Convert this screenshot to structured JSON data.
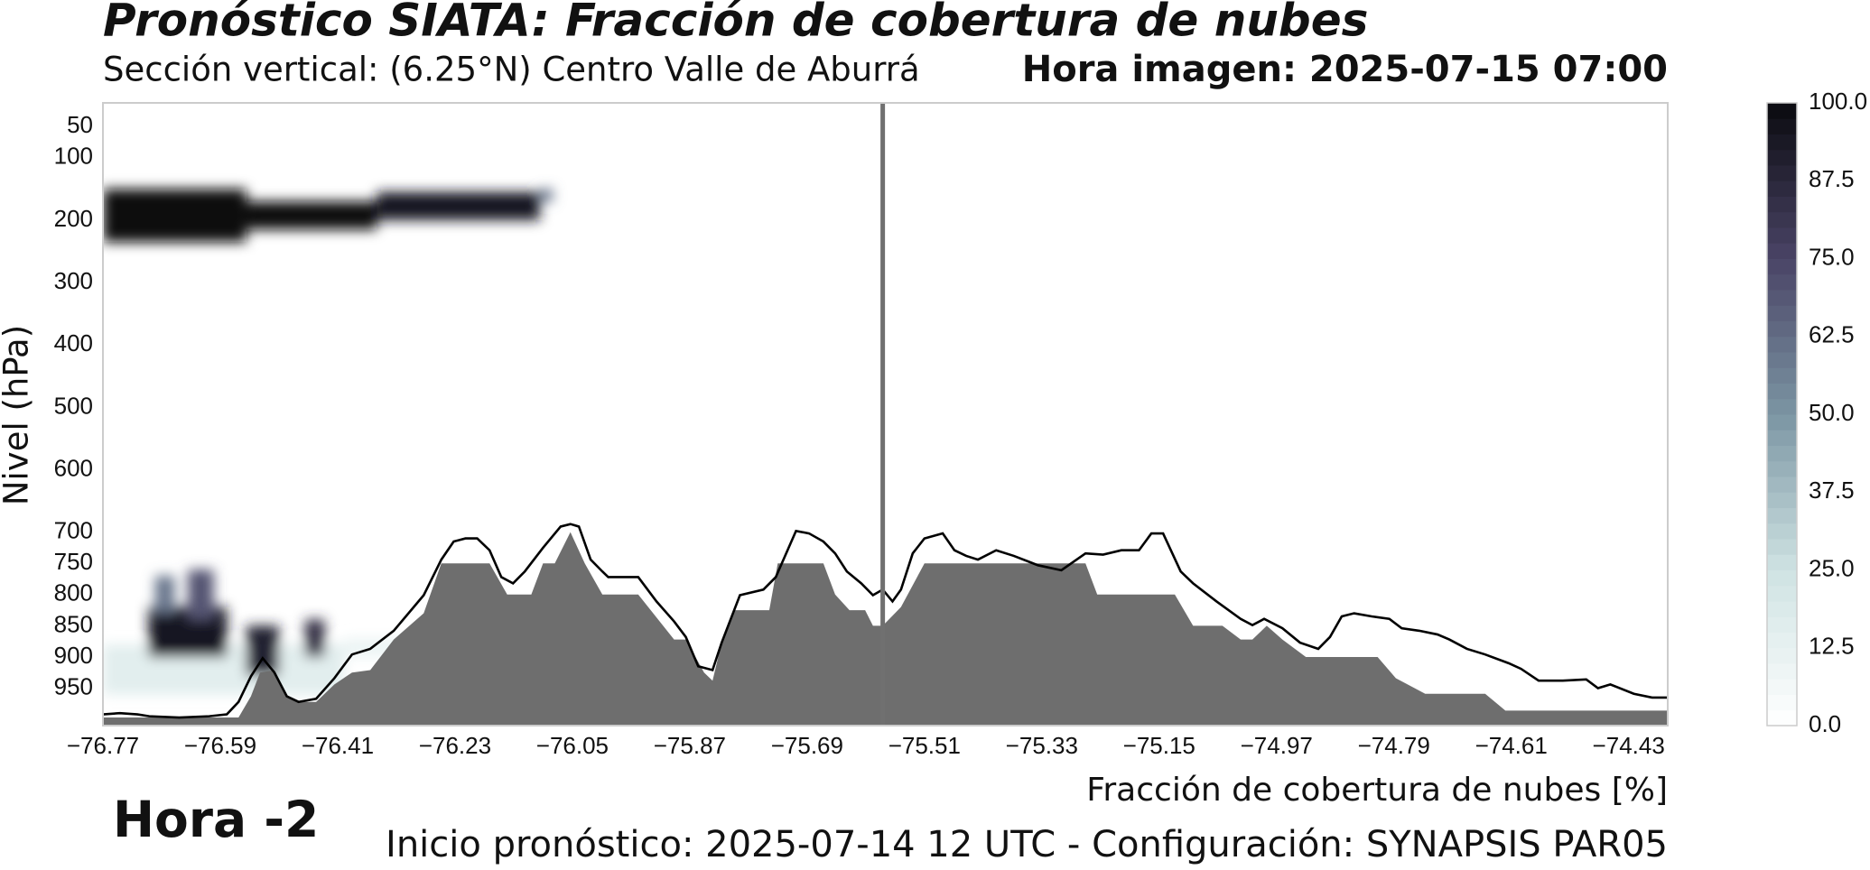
{
  "chart_data": {
    "type": "cross-section",
    "title": "Pronóstico SIATA: Fracción de cobertura de nubes",
    "subtitle": "Sección vertical: (6.25°N) Centro Valle de Aburrá",
    "time_label": "Hora imagen: 2025-07-15 07:00",
    "ylabel": "Nivel (hPa)",
    "xlabel": "Fracción de cobertura de nubes [%]",
    "annotation": "Hora -2",
    "footer": "Inicio pronóstico: 2025-07-14 12 UTC - Configuración: SYNAPSIS PAR05",
    "xlim": [
      -76.77,
      -74.37
    ],
    "ylim": [
      1010,
      12
    ],
    "xticks": [
      {
        "value": -76.77,
        "label": "−76.77"
      },
      {
        "value": -76.59,
        "label": "−76.59"
      },
      {
        "value": -76.41,
        "label": "−76.41"
      },
      {
        "value": -76.23,
        "label": "−76.23"
      },
      {
        "value": -76.05,
        "label": "−76.05"
      },
      {
        "value": -75.87,
        "label": "−75.87"
      },
      {
        "value": -75.69,
        "label": "−75.69"
      },
      {
        "value": -75.51,
        "label": "−75.51"
      },
      {
        "value": -75.33,
        "label": "−75.33"
      },
      {
        "value": -75.15,
        "label": "−75.15"
      },
      {
        "value": -74.97,
        "label": "−74.97"
      },
      {
        "value": -74.79,
        "label": "−74.79"
      },
      {
        "value": -74.61,
        "label": "−74.61"
      },
      {
        "value": -74.43,
        "label": "−74.43"
      }
    ],
    "yticks": [
      50,
      100,
      200,
      300,
      400,
      500,
      600,
      700,
      750,
      800,
      850,
      900,
      950
    ],
    "terrain": {
      "color": "#6e6e6e",
      "x": [
        -76.77,
        -76.562,
        -76.543,
        -76.529,
        -76.507,
        -76.488,
        -76.47,
        -76.443,
        -76.415,
        -76.388,
        -76.36,
        -76.324,
        -76.278,
        -76.251,
        -76.177,
        -76.15,
        -76.113,
        -76.095,
        -76.077,
        -76.053,
        -76.031,
        -76.004,
        -75.949,
        -75.894,
        -75.876,
        -75.848,
        -75.835,
        -75.821,
        -75.803,
        -75.748,
        -75.735,
        -75.665,
        -75.647,
        -75.625,
        -75.601,
        -75.589,
        -75.574,
        -75.546,
        -75.51,
        -75.263,
        -75.245,
        -75.126,
        -75.098,
        -75.053,
        -75.025,
        -75.007,
        -74.985,
        -74.961,
        -74.925,
        -74.815,
        -74.787,
        -74.742,
        -74.65,
        -74.619,
        -74.37
      ],
      "values": [
        997,
        997,
        963,
        925,
        921,
        963,
        972,
        972,
        944,
        925,
        921,
        872,
        830,
        750,
        750,
        800,
        800,
        750,
        750,
        700,
        750,
        800,
        800,
        872,
        872,
        925,
        938,
        877,
        825,
        825,
        750,
        750,
        800,
        825,
        825,
        850,
        850,
        820,
        750,
        750,
        800,
        800,
        850,
        850,
        872,
        872,
        850,
        872,
        900,
        900,
        934,
        959,
        959,
        986,
        986
      ]
    },
    "surface": {
      "color": "#000000",
      "x": [
        -76.77,
        -76.744,
        -76.717,
        -76.699,
        -76.653,
        -76.607,
        -76.58,
        -76.562,
        -76.543,
        -76.525,
        -76.507,
        -76.488,
        -76.47,
        -76.443,
        -76.415,
        -76.388,
        -76.36,
        -76.324,
        -76.278,
        -76.251,
        -76.232,
        -76.214,
        -76.196,
        -76.177,
        -76.159,
        -76.141,
        -76.123,
        -76.095,
        -76.068,
        -76.053,
        -76.04,
        -76.022,
        -76.004,
        -75.995,
        -75.949,
        -75.921,
        -75.894,
        -75.876,
        -75.857,
        -75.835,
        -75.821,
        -75.793,
        -75.757,
        -75.738,
        -75.72,
        -75.707,
        -75.687,
        -75.665,
        -75.647,
        -75.629,
        -75.607,
        -75.589,
        -75.574,
        -75.559,
        -75.546,
        -75.528,
        -75.51,
        -75.482,
        -75.464,
        -75.446,
        -75.428,
        -75.4,
        -75.373,
        -75.336,
        -75.3,
        -75.263,
        -75.236,
        -75.208,
        -75.181,
        -75.162,
        -75.144,
        -75.117,
        -75.098,
        -75.062,
        -75.025,
        -75.007,
        -74.989,
        -74.961,
        -74.934,
        -74.906,
        -74.888,
        -74.87,
        -74.851,
        -74.824,
        -74.797,
        -74.778,
        -74.751,
        -74.723,
        -74.705,
        -74.678,
        -74.65,
        -74.614,
        -74.595,
        -74.568,
        -74.531,
        -74.495,
        -74.477,
        -74.458,
        -74.422,
        -74.394,
        -74.37
      ],
      "values": [
        992,
        990,
        992,
        995,
        997,
        995,
        992,
        972,
        931,
        902,
        925,
        963,
        972,
        967,
        934,
        896,
        887,
        858,
        801,
        744,
        715,
        710,
        710,
        729,
        772,
        782,
        763,
        725,
        691,
        687,
        691,
        744,
        763,
        772,
        772,
        811,
        843,
        868,
        915,
        921,
        877,
        801,
        792,
        772,
        729,
        698,
        702,
        715,
        734,
        763,
        782,
        801,
        792,
        811,
        792,
        734,
        710,
        702,
        729,
        738,
        744,
        729,
        738,
        753,
        761,
        734,
        736,
        729,
        729,
        702,
        702,
        763,
        782,
        811,
        839,
        849,
        839,
        854,
        877,
        887,
        868,
        835,
        830,
        835,
        839,
        854,
        858,
        864,
        872,
        887,
        896,
        910,
        919,
        938,
        938,
        936,
        950,
        944,
        959,
        965,
        965
      ]
    },
    "clouds": [
      {
        "x0": -76.77,
        "x1": -76.55,
        "p0": 150,
        "p1": 235,
        "value": 100
      },
      {
        "x0": -76.55,
        "x1": -76.35,
        "p0": 170,
        "p1": 215,
        "value": 100
      },
      {
        "x0": -76.35,
        "x1": -76.1,
        "p0": 155,
        "p1": 200,
        "value": 95
      },
      {
        "x0": -76.1,
        "x1": -76.08,
        "p0": 150,
        "p1": 170,
        "value": 60
      },
      {
        "x0": -76.77,
        "x1": -76.4,
        "p0": 880,
        "p1": 960,
        "value": 15
      },
      {
        "x0": -76.4,
        "x1": -76.3,
        "p0": 870,
        "p1": 900,
        "value": 10
      },
      {
        "x0": -76.7,
        "x1": -76.58,
        "p0": 820,
        "p1": 900,
        "value": 95
      },
      {
        "x0": -76.64,
        "x1": -76.6,
        "p0": 760,
        "p1": 840,
        "value": 70
      },
      {
        "x0": -76.69,
        "x1": -76.66,
        "p0": 770,
        "p1": 830,
        "value": 60
      },
      {
        "x0": -76.55,
        "x1": -76.5,
        "p0": 850,
        "p1": 930,
        "value": 90
      },
      {
        "x0": -76.46,
        "x1": -76.43,
        "p0": 840,
        "p1": 900,
        "value": 85
      }
    ],
    "cross_lon": -75.574,
    "cross_color": "#707070",
    "colorbar": {
      "clim": [
        0,
        100
      ],
      "colormap": [
        "#ffffff",
        "#cfe3e3",
        "#7b95a3",
        "#4a4466",
        "#0a0a0f"
      ],
      "ticks": [
        {
          "value": 0,
          "label": "0.0"
        },
        {
          "value": 12.5,
          "label": "12.5"
        },
        {
          "value": 25,
          "label": "25.0"
        },
        {
          "value": 37.5,
          "label": "37.5"
        },
        {
          "value": 50,
          "label": "50.0"
        },
        {
          "value": 62.5,
          "label": "62.5"
        },
        {
          "value": 75,
          "label": "75.0"
        },
        {
          "value": 87.5,
          "label": "87.5"
        },
        {
          "value": 100,
          "label": "100.0"
        }
      ]
    }
  }
}
